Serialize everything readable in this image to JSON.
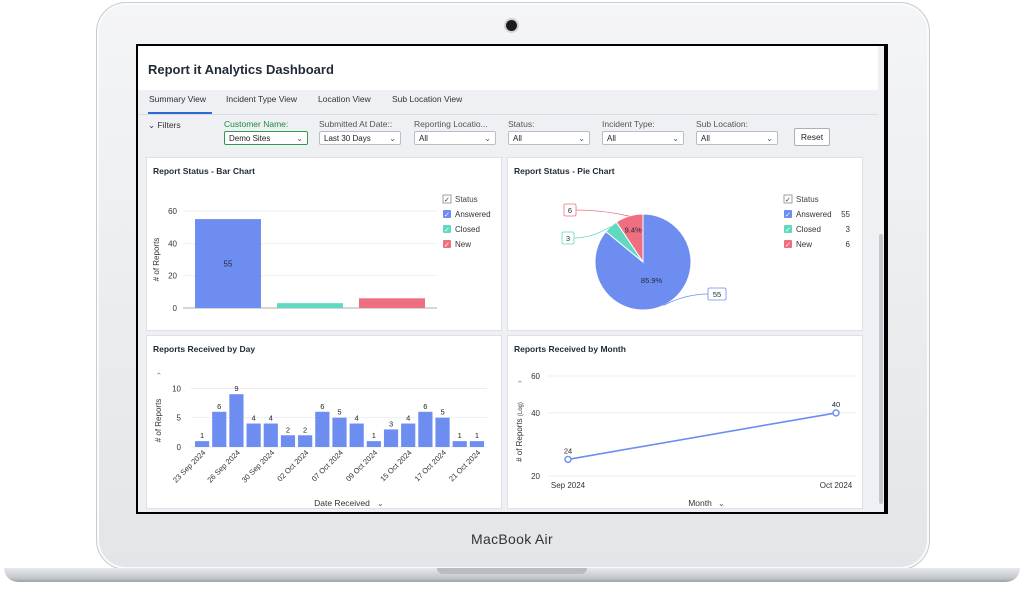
{
  "device": {
    "brand": "MacBook Air"
  },
  "app": {
    "title": "Report it Analytics Dashboard",
    "tabs": [
      {
        "label": "Summary View",
        "active": true
      },
      {
        "label": "Incident Type View",
        "active": false
      },
      {
        "label": "Location View",
        "active": false
      },
      {
        "label": "Sub Location View",
        "active": false
      }
    ],
    "filters": {
      "toggle_label": "Filters",
      "customer": {
        "label": "Customer Name:",
        "value": "Demo Sites"
      },
      "submitted": {
        "label": "Submitted At Date::",
        "value": "Last 30 Days"
      },
      "reporting_location": {
        "label": "Reporting Locatio...",
        "value": "All"
      },
      "status": {
        "label": "Status:",
        "value": "All"
      },
      "incident_type": {
        "label": "Incident Type:",
        "value": "All"
      },
      "sub_location": {
        "label": "Sub Location:",
        "value": "All"
      },
      "reset_label": "Reset"
    }
  },
  "colors": {
    "answered": "#6d8df0",
    "closed": "#5fd9c0",
    "new": "#ef6f80",
    "line": "#6d8df0",
    "accent": "#2a6bd3"
  },
  "panels": {
    "status_bar": {
      "title": "Report Status - Bar Chart"
    },
    "status_pie": {
      "title": "Report Status - Pie Chart"
    },
    "by_day": {
      "title": "Reports Received by Day"
    },
    "by_month": {
      "title": "Reports Received by Month"
    }
  },
  "chart_data": [
    {
      "type": "bar",
      "title": "Report Status - Bar Chart",
      "ylabel": "# of Reports",
      "ylim": [
        0,
        60
      ],
      "yticks": [
        0,
        20,
        40,
        60
      ],
      "legend_title": "Status",
      "legend_placement": "top-right",
      "categories": [
        "Answered",
        "Closed",
        "New"
      ],
      "values": [
        55,
        3,
        6
      ],
      "data_labels": [
        "55",
        "",
        ""
      ]
    },
    {
      "type": "pie",
      "title": "Report Status - Pie Chart",
      "legend_title": "Status",
      "legend_placement": "right",
      "labels": [
        "Answered",
        "Closed",
        "New"
      ],
      "values": [
        55,
        3,
        6
      ],
      "percent_labels": [
        "85.9%",
        "",
        "9.4%"
      ],
      "callouts": [
        "55",
        "3",
        "6"
      ]
    },
    {
      "type": "bar",
      "title": "Reports Received by Day",
      "ylabel": "# of Reports",
      "xlabel": "Date Received",
      "ylim": [
        0,
        10
      ],
      "yticks": [
        0,
        5,
        10
      ],
      "tick_labels": [
        "23 Sep 2024",
        "26 Sep 2024",
        "30 Sep 2024",
        "02 Oct 2024",
        "07 Oct 2024",
        "09 Oct 2024",
        "15 Oct 2024",
        "17 Oct 2024",
        "21 Oct 2024"
      ],
      "tick_at": [
        0,
        2,
        4,
        6,
        8,
        10,
        12,
        14,
        16
      ],
      "values": [
        1,
        6,
        9,
        4,
        4,
        2,
        2,
        6,
        5,
        4,
        1,
        3,
        4,
        6,
        5,
        1,
        1
      ]
    },
    {
      "type": "line",
      "title": "Reports Received by Month",
      "ylabel": "# of Reports",
      "ylabel_note": "(Log)",
      "xlabel": "Month",
      "yscale": "log",
      "yticks": [
        20,
        40,
        60
      ],
      "x": [
        "Sep 2024",
        "Oct 2024"
      ],
      "values": [
        24,
        40
      ]
    }
  ]
}
